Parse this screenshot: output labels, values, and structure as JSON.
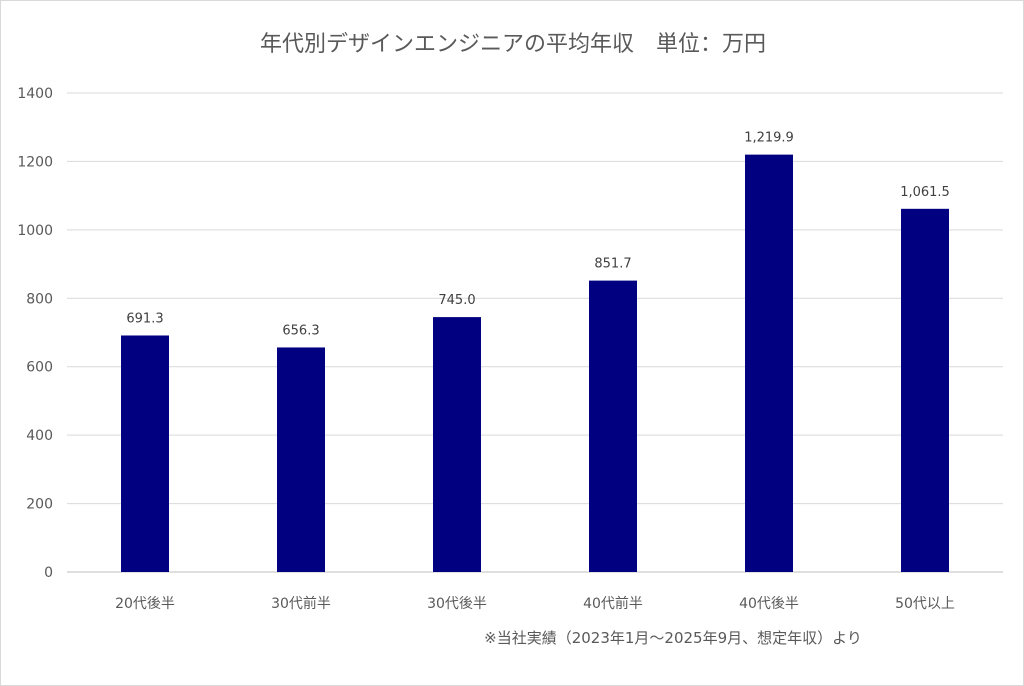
{
  "chart_data": {
    "type": "bar",
    "title": "年代別デザインエンジニアの平均年収　単位：万円",
    "categories": [
      "20代後半",
      "30代前半",
      "30代後半",
      "40代前半",
      "40代後半",
      "50代以上"
    ],
    "values": [
      691.3,
      656.3,
      745.0,
      851.7,
      1219.9,
      1061.5
    ],
    "data_labels": [
      "691.3",
      "656.3",
      "745.0",
      "851.7",
      "1,219.9",
      "1,061.5"
    ],
    "yticks": [
      0,
      200,
      400,
      600,
      800,
      1000,
      1200,
      1400
    ],
    "ylim": [
      0,
      1400
    ],
    "xlabel": "",
    "ylabel": "",
    "grid": true,
    "legend": "none",
    "bar_color": "#000080",
    "note": "※当社実績（2023年1月～2025年9月、想定年収）より"
  }
}
